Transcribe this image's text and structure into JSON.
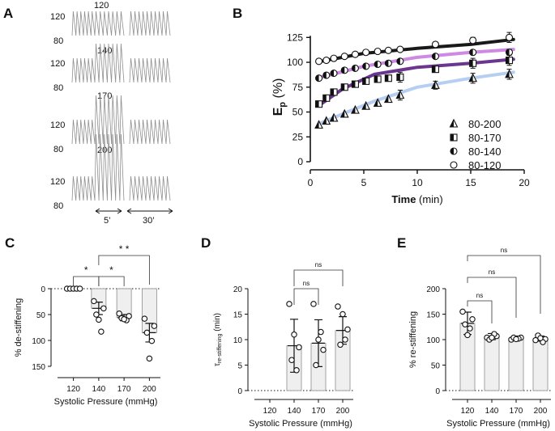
{
  "panel_labels": {
    "a": "A",
    "b": "B",
    "c": "C",
    "d": "D",
    "e": "E"
  },
  "panel_a": {
    "blocks": [
      {
        "upper": "120",
        "lower": "80",
        "peak": "120"
      },
      {
        "upper": "120",
        "lower": "80",
        "peak": "140"
      },
      {
        "upper": "120",
        "lower": "80",
        "peak": "170"
      },
      {
        "upper": "120",
        "lower": "80",
        "peak": "200"
      }
    ],
    "duration_short": "5’",
    "duration_long": "30’"
  },
  "chart_data": [
    {
      "id": "B",
      "type": "line",
      "ylabel_main": "E",
      "ylabel_sub": "p",
      "ylabel_unit": "(%)",
      "xlabel": "Time",
      "xlabel_unit": "(min)",
      "xlim": [
        0,
        20
      ],
      "ylim": [
        0,
        135
      ],
      "xticks": [
        "0",
        "5",
        "10",
        "15",
        "20"
      ],
      "yticks": [
        "0",
        "25",
        "50",
        "75",
        "100",
        "125"
      ],
      "legend": [
        "80-200",
        "80-170",
        "80-140",
        "80-120"
      ],
      "series": [
        {
          "name": "80-120",
          "color": "#000000",
          "marker": "open-circle",
          "trace": [
            [
              1,
              101
            ],
            [
              5,
              109
            ],
            [
              10,
              114
            ],
            [
              15,
              118
            ],
            [
              19,
              123
            ]
          ],
          "x": [
            0.8,
            1.5,
            2.2,
            3.2,
            4.2,
            5.2,
            6.3,
            7.3,
            8.4,
            11.7,
            15.2,
            18.6
          ],
          "y": [
            101,
            102,
            104,
            106,
            108,
            110,
            111,
            112,
            113,
            118,
            122,
            125
          ],
          "yerr": [
            0,
            0,
            0,
            0,
            0,
            0,
            0,
            0,
            0,
            0,
            3,
            5
          ]
        },
        {
          "name": "80-140",
          "color": "#c97ce0",
          "marker": "half-circle",
          "trace": [
            [
              1,
              85
            ],
            [
              5,
              96
            ],
            [
              10,
              105
            ],
            [
              15,
              110
            ],
            [
              19,
              113
            ]
          ],
          "x": [
            0.8,
            1.5,
            2.2,
            3.2,
            4.2,
            5.2,
            6.3,
            7.3,
            8.4,
            11.7,
            15.2,
            18.6
          ],
          "y": [
            84,
            87,
            89,
            92,
            94,
            96,
            98,
            99,
            101,
            106,
            110,
            110
          ],
          "yerr": [
            0,
            0,
            0,
            0,
            0,
            0,
            0,
            0,
            0,
            0,
            2,
            3
          ]
        },
        {
          "name": "80-170",
          "color": "#5a2082",
          "marker": "half-square",
          "trace": [
            [
              1,
              58
            ],
            [
              3,
              73
            ],
            [
              6,
              88
            ],
            [
              10,
              95
            ],
            [
              15,
              99
            ],
            [
              19,
              103
            ]
          ],
          "x": [
            0.8,
            1.5,
            2.2,
            3.2,
            4.2,
            5.2,
            6.3,
            7.3,
            8.4,
            11.7,
            15.2,
            18.6
          ],
          "y": [
            58,
            64,
            70,
            75,
            78,
            81,
            83,
            84,
            85,
            93,
            99,
            102
          ],
          "yerr": [
            0,
            0,
            0,
            0,
            0,
            0,
            0,
            0,
            5,
            0,
            5,
            5
          ]
        },
        {
          "name": "80-200",
          "color": "#aec9ef",
          "marker": "half-triangle",
          "trace": [
            [
              1,
              39
            ],
            [
              3,
              48
            ],
            [
              6,
              61
            ],
            [
              10,
              75
            ],
            [
              15,
              84
            ],
            [
              19,
              90
            ]
          ],
          "x": [
            0.8,
            1.5,
            2.2,
            3.2,
            4.2,
            5.2,
            6.3,
            7.3,
            8.4,
            11.7,
            15.2,
            18.6
          ],
          "y": [
            37,
            41,
            44,
            48,
            52,
            56,
            59,
            63,
            67,
            77,
            84,
            88
          ],
          "yerr": [
            0,
            0,
            0,
            0,
            0,
            0,
            0,
            0,
            5,
            4,
            5,
            5
          ]
        }
      ]
    },
    {
      "id": "C",
      "type": "bar",
      "ylabel": "% de-stiffening",
      "xlabel": "Systolic Pressure (mmHg)",
      "categories": [
        "120",
        "140",
        "170",
        "200"
      ],
      "ylim": [
        0,
        150
      ],
      "inverted": true,
      "yticks": [
        "0",
        "50",
        "100",
        "150"
      ],
      "values": [
        0,
        38,
        56,
        85
      ],
      "err": [
        0,
        12,
        6,
        18
      ],
      "points": [
        [
          0,
          0,
          0,
          0,
          0
        ],
        [
          24,
          38,
          50,
          83,
          60
        ],
        [
          48,
          53,
          57,
          61,
          59
        ],
        [
          58,
          72,
          85,
          101,
          135
        ]
      ],
      "significance": [
        {
          "from": "120",
          "to": "140",
          "label": "*"
        },
        {
          "from": "140",
          "to": "170",
          "label": "*"
        },
        {
          "from": "140",
          "to": "200",
          "label": "* *"
        }
      ]
    },
    {
      "id": "D",
      "type": "bar",
      "ylabel_main": "τ",
      "ylabel_sub": "re-stiffening",
      "ylabel_unit": "(min)",
      "xlabel": "Systolic Pressure (mmHg)",
      "categories": [
        "120",
        "140",
        "170",
        "200"
      ],
      "ylim": [
        0,
        20
      ],
      "yticks": [
        "0",
        "5",
        "10",
        "15",
        "20"
      ],
      "values": [
        null,
        8.8,
        9.3,
        11.8
      ],
      "err": [
        0,
        5.2,
        4.6,
        2.7
      ],
      "points": [
        [],
        [
          17,
          8.5,
          6,
          4,
          11
        ],
        [
          17,
          8,
          5,
          11.5,
          10
        ],
        [
          16.5,
          12,
          9,
          10,
          15
        ]
      ],
      "significance": [
        {
          "from": "140",
          "to": "170",
          "label": "ns"
        },
        {
          "from": "140",
          "to": "200",
          "label": "ns"
        }
      ]
    },
    {
      "id": "E",
      "type": "bar",
      "ylabel": "% re-stiffening",
      "xlabel": "Systolic Pressure (mmHg)",
      "categories": [
        "120",
        "140",
        "170",
        "200"
      ],
      "ylim": [
        0,
        200
      ],
      "yticks": [
        "0",
        "50",
        "100",
        "150",
        "200"
      ],
      "values": [
        132,
        106,
        103,
        102
      ],
      "err": [
        22,
        6,
        4,
        5
      ],
      "points": [
        [
          155,
          140,
          130,
          122,
          109
        ],
        [
          104,
          107,
          100,
          111,
          104
        ],
        [
          100,
          104,
          104,
          102,
          101
        ],
        [
          99,
          101,
          108,
          95,
          103
        ]
      ],
      "significance": [
        {
          "from": "120",
          "to": "140",
          "label": "ns"
        },
        {
          "from": "120",
          "to": "170",
          "label": "ns"
        },
        {
          "from": "120",
          "to": "200",
          "label": "ns"
        }
      ]
    }
  ]
}
